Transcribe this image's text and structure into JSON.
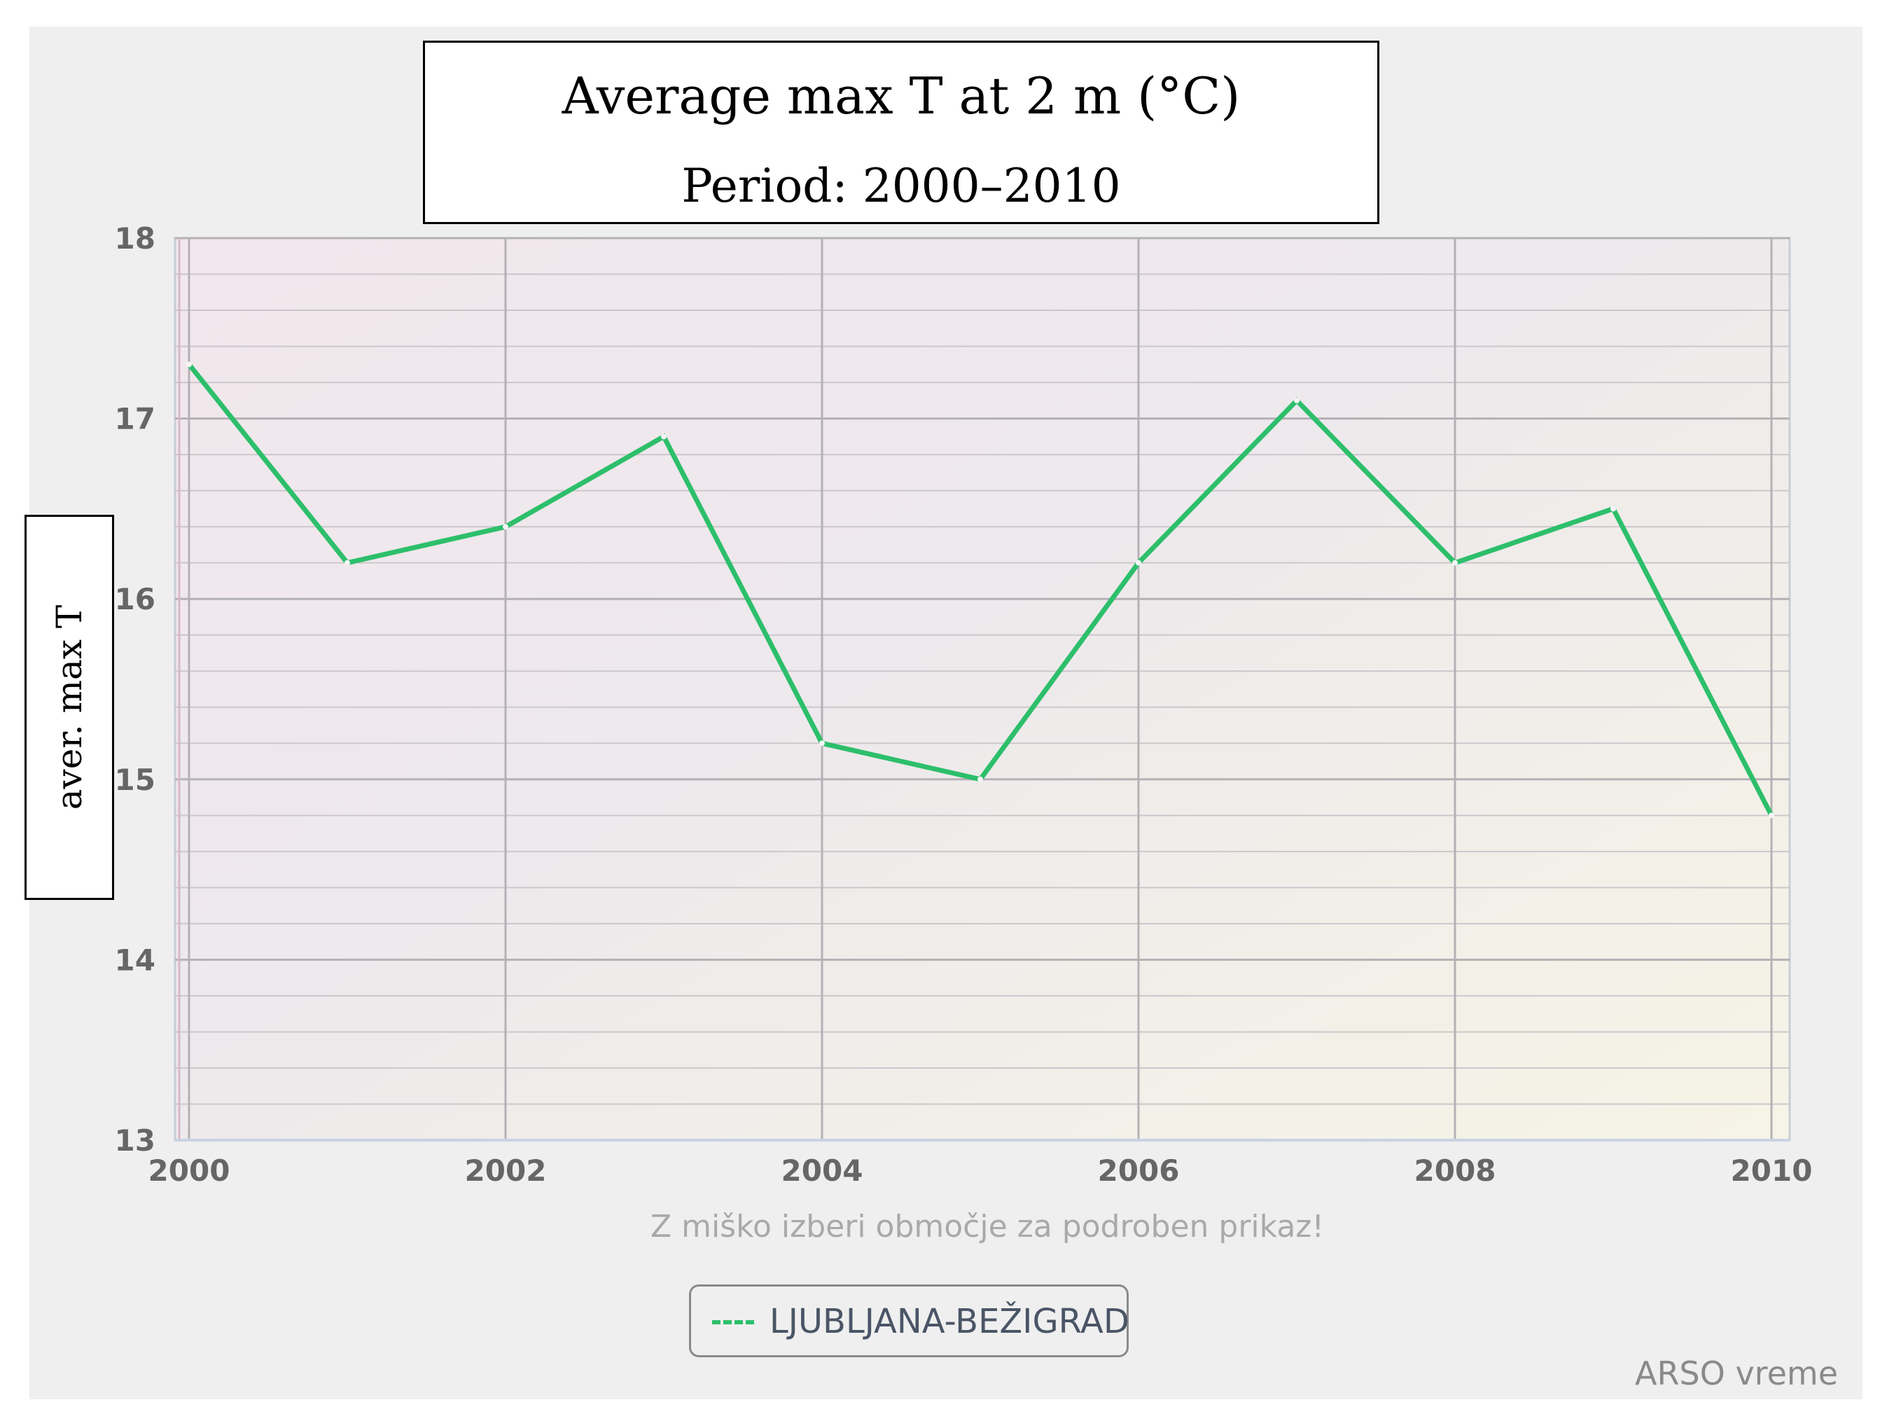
{
  "chart_data": {
    "type": "line",
    "title": "Average max T at 2 m (°C)",
    "subtitle": "Period: 2000–2010",
    "xlabel": "",
    "ylabel": "aver. max T",
    "x": [
      2000,
      2001,
      2002,
      2003,
      2004,
      2005,
      2006,
      2007,
      2008,
      2009,
      2010
    ],
    "series": [
      {
        "name": "LJUBLJANA-BEŽIGRAD",
        "color": "#2dbf6b",
        "values": [
          17.3,
          16.2,
          16.4,
          16.9,
          15.2,
          15.0,
          16.2,
          17.1,
          16.2,
          16.5,
          14.8
        ]
      }
    ],
    "xlim": [
      2000,
      2010
    ],
    "ylim": [
      13,
      18
    ],
    "x_ticks": [
      "2000",
      "2002",
      "2004",
      "2006",
      "2008",
      "2010"
    ],
    "y_ticks": [
      "13",
      "14",
      "15",
      "16",
      "17",
      "18"
    ],
    "grid": true,
    "legend_position": "bottom-center"
  },
  "hint_text": "Z miško izberi območje za podroben prikaz!",
  "credit": "ARSO vreme"
}
